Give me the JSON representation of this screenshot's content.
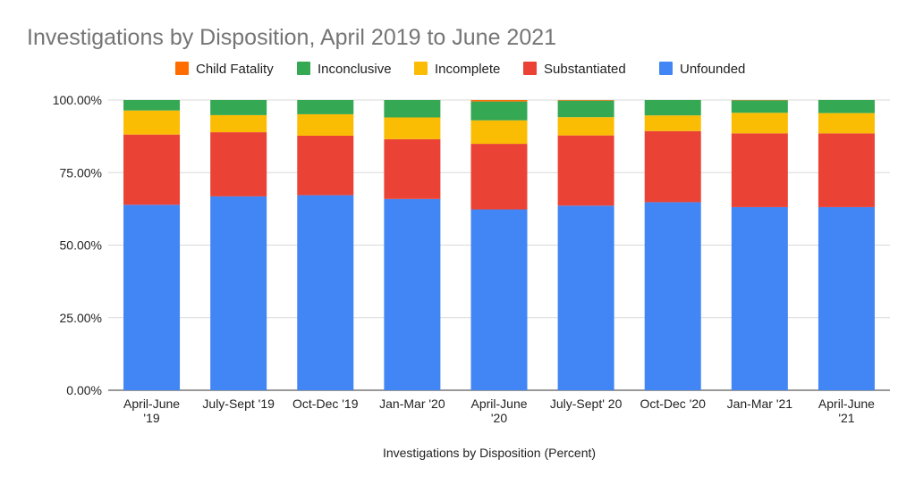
{
  "chart_data": {
    "type": "bar",
    "stacked": true,
    "title": "Investigations by Disposition, April 2019 to June 2021",
    "xlabel": "Investigations by Disposition (Percent)",
    "ylabel": "",
    "ylim": [
      0,
      100
    ],
    "yticks": [
      "0.00%",
      "25.00%",
      "50.00%",
      "75.00%",
      "100.00%"
    ],
    "grid": true,
    "legend_position": "top",
    "categories": [
      [
        "April-June",
        "'19"
      ],
      [
        "July-Sept '19"
      ],
      [
        "Oct-Dec '19"
      ],
      [
        "Jan-Mar '20"
      ],
      [
        "April-June",
        "'20"
      ],
      [
        "July-Sept' 20"
      ],
      [
        "Oct-Dec '20"
      ],
      [
        "Jan-Mar '21"
      ],
      [
        "April-June",
        "'21"
      ]
    ],
    "series": [
      {
        "name": "Unfounded",
        "color": "#4285f4",
        "values": [
          63.9,
          66.8,
          67.2,
          65.9,
          62.3,
          63.6,
          64.8,
          63.1,
          63.1
        ]
      },
      {
        "name": "Substantiated",
        "color": "#ea4335",
        "values": [
          24.2,
          22.1,
          20.5,
          20.6,
          22.6,
          24.2,
          24.5,
          25.4,
          25.4
        ]
      },
      {
        "name": "Incomplete",
        "color": "#fbbc04",
        "values": [
          8.3,
          5.9,
          7.4,
          7.5,
          8.1,
          6.3,
          5.4,
          7.1,
          7.0
        ]
      },
      {
        "name": "Inconclusive",
        "color": "#34a853",
        "values": [
          3.6,
          5.2,
          4.9,
          6.0,
          6.5,
          5.7,
          5.3,
          4.3,
          4.5
        ]
      },
      {
        "name": "Child Fatality",
        "color": "#ff6d01",
        "values": [
          0.0,
          0.0,
          0.0,
          0.0,
          0.5,
          0.2,
          0.0,
          0.1,
          0.0
        ]
      }
    ],
    "legend_order": [
      "Child Fatality",
      "Inconclusive",
      "Incomplete",
      "Substantiated",
      "Unfounded"
    ]
  }
}
